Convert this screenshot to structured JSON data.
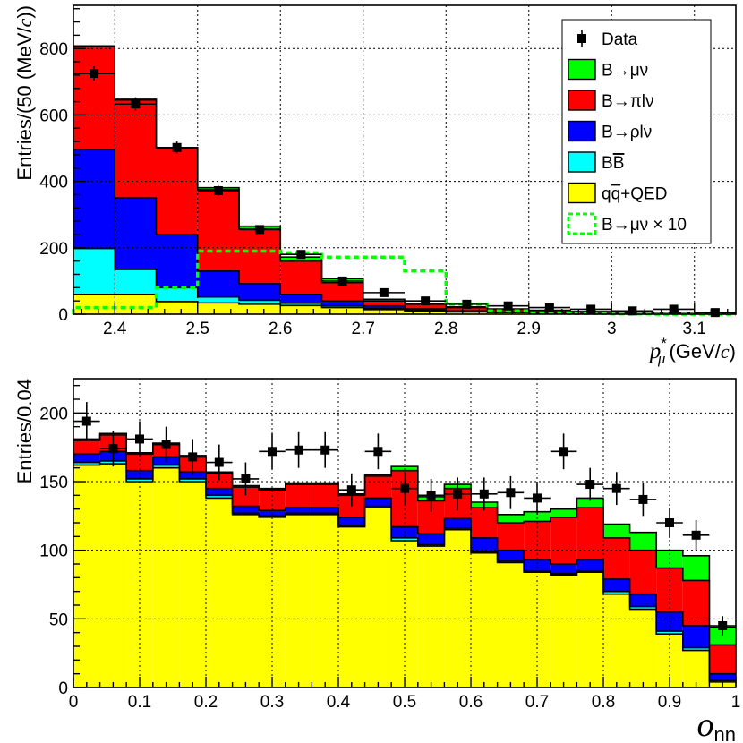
{
  "chart_data": [
    {
      "type": "bar",
      "subtype": "stacked-histogram",
      "title": "",
      "xlabel": "p*_μ (GeV/c)",
      "xlabel_parts": {
        "var": "p",
        "sup": "*",
        "sub": "μ",
        "unit_pre": "(GeV/",
        "unit_c": "c",
        "unit_post": ")"
      },
      "ylabel": "Entries/(50 (MeV/c))",
      "ylabel_parts": {
        "pre": "Entries/(50 (MeV/",
        "c": "c",
        "post": "))"
      },
      "xlim": [
        2.35,
        3.15
      ],
      "ylim": [
        0,
        930
      ],
      "x_ticks": [
        2.4,
        2.5,
        2.6,
        2.7,
        2.8,
        2.9,
        3.0,
        3.1
      ],
      "x_tick_labels": [
        "2.4",
        "2.5",
        "2.6",
        "2.7",
        "2.8",
        "2.9",
        "3",
        "3.1"
      ],
      "y_ticks": [
        0,
        200,
        400,
        600,
        800
      ],
      "y_tick_labels": [
        "0",
        "200",
        "400",
        "600",
        "800"
      ],
      "grid": true,
      "bin_edges": [
        2.35,
        2.4,
        2.45,
        2.5,
        2.55,
        2.6,
        2.65,
        2.7,
        2.75,
        2.8,
        2.85,
        2.9,
        2.95,
        3.0,
        3.05,
        3.1,
        3.15
      ],
      "stack_series": [
        {
          "name": "q̅q+QED",
          "color": "#ffff00",
          "values": [
            60,
            60,
            38,
            34,
            30,
            26,
            20,
            14,
            10,
            7,
            5,
            3,
            2,
            2,
            2,
            1
          ]
        },
        {
          "name": "B̅B",
          "color": "#00ffff",
          "values": [
            138,
            75,
            42,
            18,
            12,
            7,
            5,
            3,
            2,
            1,
            1,
            1,
            0,
            0,
            0,
            0
          ]
        },
        {
          "name": "B→ρlν",
          "color": "#0000ff",
          "values": [
            297,
            215,
            160,
            78,
            50,
            27,
            15,
            8,
            4,
            2,
            1,
            1,
            0,
            0,
            0,
            0
          ]
        },
        {
          "name": "B→πlν",
          "color": "#ff0000",
          "values": [
            311,
            295,
            260,
            245,
            165,
            100,
            55,
            15,
            14,
            10,
            8,
            6,
            6,
            5,
            4,
            3
          ]
        },
        {
          "name": "B→μν",
          "color": "#00ff00",
          "values": [
            2,
            2,
            2,
            6,
            8,
            12,
            12,
            5,
            3,
            2,
            1,
            1,
            0,
            0,
            0,
            0
          ]
        }
      ],
      "overlay": {
        "name": "B→μν × 10",
        "color": "#00ff00",
        "style": "dashed",
        "values": [
          20,
          20,
          80,
          190,
          190,
          185,
          172,
          172,
          130,
          30,
          10,
          4,
          2,
          1,
          0,
          0
        ]
      },
      "data_points": {
        "name": "Data",
        "x": [
          2.375,
          2.425,
          2.475,
          2.525,
          2.575,
          2.625,
          2.675,
          2.725,
          2.775,
          2.825,
          2.875,
          2.925,
          2.975,
          3.025,
          3.075,
          3.125
        ],
        "y": [
          725,
          633,
          502,
          372,
          255,
          180,
          100,
          65,
          40,
          30,
          25,
          20,
          15,
          10,
          15,
          5
        ],
        "err": [
          22,
          20,
          18,
          15,
          12,
          10,
          8,
          7,
          6,
          5,
          4,
          4,
          3,
          3,
          3,
          2
        ]
      },
      "legend_position": "top-right",
      "legend": [
        {
          "label": "Data",
          "kind": "marker"
        },
        {
          "label_parts": [
            "B",
            "→",
            "μν"
          ],
          "kind": "fill",
          "color": "#00ff00"
        },
        {
          "label_parts": [
            "B",
            "→",
            "πlν"
          ],
          "kind": "fill",
          "color": "#ff0000"
        },
        {
          "label_parts": [
            "B",
            "→",
            "ρlν"
          ],
          "kind": "fill",
          "color": "#0000ff"
        },
        {
          "label_parts": [
            "B",
            "B",
            ""
          ],
          "kind": "fill",
          "color": "#00ffff",
          "overline_second": true
        },
        {
          "label_parts": [
            "q",
            "q",
            "+QED"
          ],
          "kind": "fill",
          "color": "#ffff00",
          "overline_second": true
        },
        {
          "label_parts": [
            "B",
            "→",
            "μν × 10"
          ],
          "kind": "dashed",
          "color": "#00ff00"
        }
      ]
    },
    {
      "type": "bar",
      "subtype": "stacked-histogram",
      "title": "",
      "xlabel": "o_nn",
      "xlabel_parts": {
        "var": "o",
        "sub": "nn"
      },
      "ylabel": "Entries/0.04",
      "xlim": [
        0,
        1
      ],
      "ylim": [
        0,
        225
      ],
      "x_ticks": [
        0,
        0.1,
        0.2,
        0.3,
        0.4,
        0.5,
        0.6,
        0.7,
        0.8,
        0.9,
        1
      ],
      "x_tick_labels": [
        "0",
        "0.1",
        "0.2",
        "0.3",
        "0.4",
        "0.5",
        "0.6",
        "0.7",
        "0.8",
        "0.9",
        "1"
      ],
      "y_ticks": [
        0,
        50,
        100,
        150,
        200
      ],
      "y_tick_labels": [
        "0",
        "50",
        "100",
        "150",
        "200"
      ],
      "grid": true,
      "bin_edges": [
        0,
        0.04,
        0.08,
        0.12,
        0.16,
        0.2,
        0.24,
        0.28,
        0.32,
        0.36,
        0.4,
        0.44,
        0.48,
        0.52,
        0.56,
        0.6,
        0.64,
        0.68,
        0.72,
        0.76,
        0.8,
        0.84,
        0.88,
        0.92,
        0.96,
        1.0
      ],
      "stack_series": [
        {
          "name": "q̅q+QED",
          "color": "#ffff00",
          "values": [
            162,
            163,
            150,
            160,
            150,
            138,
            126,
            124,
            126,
            126,
            117,
            131,
            107,
            103,
            115,
            98,
            91,
            84,
            82,
            84,
            68,
            57,
            39,
            27,
            4
          ]
        },
        {
          "name": "B̅B",
          "color": "#00ffff",
          "values": [
            2,
            2,
            2,
            2,
            2,
            2,
            1,
            1,
            1,
            1,
            1,
            1,
            2,
            1,
            1,
            1,
            1,
            1,
            1,
            1,
            2,
            2,
            2,
            2,
            1
          ]
        },
        {
          "name": "B→ρlν",
          "color": "#0000ff",
          "values": [
            6,
            7,
            6,
            6,
            5,
            5,
            5,
            4,
            4,
            4,
            6,
            6,
            8,
            8,
            7,
            10,
            8,
            8,
            7,
            8,
            9,
            9,
            14,
            16,
            5
          ]
        },
        {
          "name": "B→πlν",
          "color": "#ff0000",
          "values": [
            10,
            12,
            12,
            9,
            11,
            11,
            14,
            15,
            17,
            17,
            16,
            16,
            41,
            24,
            22,
            22,
            20,
            28,
            34,
            38,
            30,
            32,
            32,
            33,
            21
          ]
        },
        {
          "name": "B→μν",
          "color": "#00ff00",
          "values": [
            1,
            1,
            1,
            1,
            1,
            1,
            1,
            1,
            1,
            1,
            1,
            1,
            3,
            3,
            3,
            4,
            6,
            7,
            6,
            7,
            10,
            13,
            13,
            18,
            13
          ]
        }
      ],
      "data_points": {
        "name": "Data",
        "x": [
          0.02,
          0.06,
          0.1,
          0.14,
          0.18,
          0.22,
          0.26,
          0.3,
          0.34,
          0.38,
          0.42,
          0.46,
          0.5,
          0.54,
          0.58,
          0.62,
          0.66,
          0.7,
          0.74,
          0.78,
          0.82,
          0.86,
          0.9,
          0.94,
          0.98
        ],
        "y": [
          194,
          174,
          181,
          177,
          168,
          164,
          152,
          172,
          173,
          173,
          144,
          172,
          145,
          140,
          141,
          141,
          142,
          138,
          172,
          148,
          145,
          137,
          120,
          111,
          45
        ],
        "err": [
          14,
          13,
          13,
          13,
          13,
          13,
          12,
          13,
          13,
          13,
          12,
          13,
          12,
          12,
          12,
          12,
          12,
          12,
          13,
          12,
          12,
          12,
          11,
          11,
          7
        ]
      }
    }
  ]
}
